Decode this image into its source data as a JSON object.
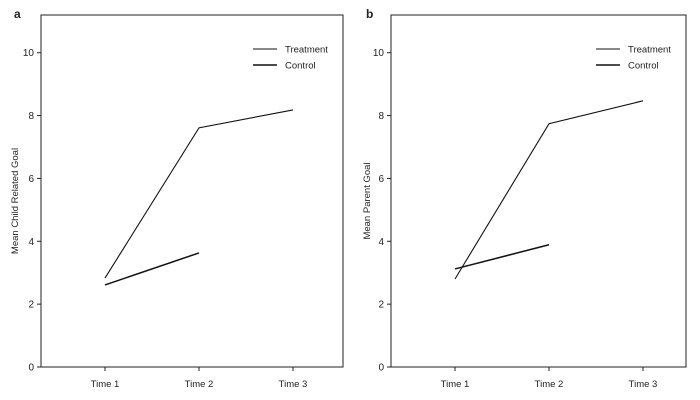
{
  "chart_data": [
    {
      "type": "line",
      "panel_label": "a",
      "title": "",
      "xlabel": "",
      "ylabel": "Mean Child Related Goal",
      "categories": [
        "Time 1",
        "Time 2",
        "Time 3"
      ],
      "yticks": [
        0,
        2,
        4,
        6,
        8,
        10
      ],
      "ylim": [
        0,
        11.2
      ],
      "grid": false,
      "legend_position": "top-right",
      "series": [
        {
          "name": "Treatment",
          "values": [
            2.83,
            7.61,
            8.18
          ]
        },
        {
          "name": "Control",
          "values": [
            2.61,
            3.63,
            null
          ]
        }
      ]
    },
    {
      "type": "line",
      "panel_label": "b",
      "title": "",
      "xlabel": "",
      "ylabel": "Mean Parent Goal",
      "categories": [
        "Time 1",
        "Time 2",
        "Time 3"
      ],
      "yticks": [
        0,
        2,
        4,
        6,
        8,
        10
      ],
      "ylim": [
        0,
        11.2
      ],
      "grid": false,
      "legend_position": "top-right",
      "series": [
        {
          "name": "Treatment",
          "values": [
            2.8,
            7.74,
            8.47
          ]
        },
        {
          "name": "Control",
          "values": [
            3.12,
            3.89,
            null
          ]
        }
      ]
    }
  ]
}
